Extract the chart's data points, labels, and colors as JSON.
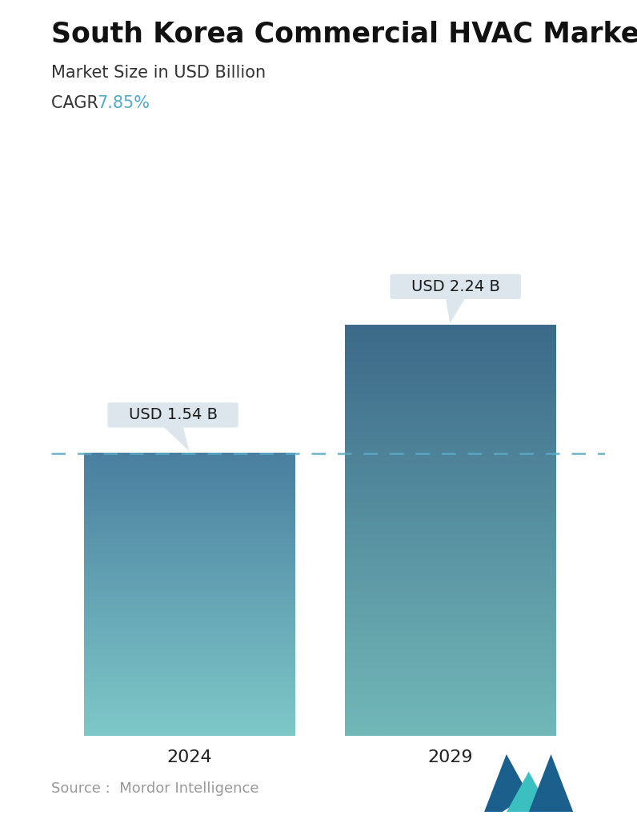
{
  "title": "South Korea Commercial HVAC Market",
  "subtitle": "Market Size in USD Billion",
  "cagr_label": "CAGR ",
  "cagr_value": "7.85%",
  "cagr_color": "#4DACC8",
  "years": [
    "2024",
    "2029"
  ],
  "values": [
    1.54,
    2.24
  ],
  "labels": [
    "USD 1.54 B",
    "USD 2.24 B"
  ],
  "top_colors": [
    "#4A7FA0",
    "#3D6A8A"
  ],
  "bottom_colors": [
    "#7EC8C8",
    "#72B8B8"
  ],
  "dashed_line_color": "#5AAAC8",
  "dashed_line_value": 1.54,
  "source_text": "Source :  Mordor Intelligence",
  "source_color": "#999999",
  "background_color": "#ffffff",
  "callout_bg": "#DDE6EC",
  "callout_text_color": "#1a1a1a",
  "ylim": [
    0,
    2.75
  ],
  "title_fontsize": 25,
  "subtitle_fontsize": 15,
  "cagr_fontsize": 15,
  "label_fontsize": 14,
  "tick_fontsize": 16,
  "source_fontsize": 13
}
